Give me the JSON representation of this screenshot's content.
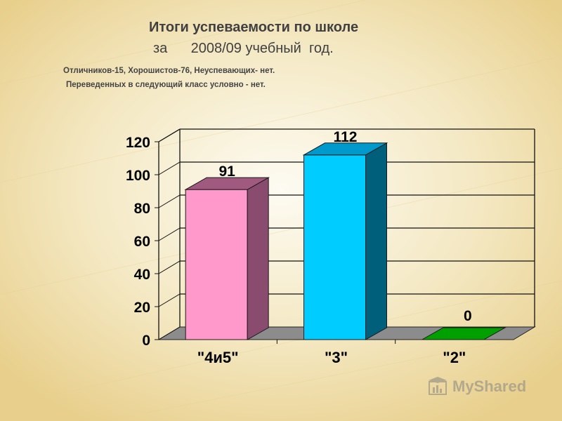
{
  "header": {
    "title_line1": "Итоги успеваемости по школе",
    "title_line2": "за      2008/09 учебный  год.",
    "note_line1": "Отличников-15,  Хорошистов-76, Неуспевающих- нет.",
    "note_line2": "Переведенных в следующий класс условно - нет."
  },
  "chart_data": {
    "type": "bar",
    "categories": [
      "\"4и5\"",
      "\"3\"",
      "\"2\""
    ],
    "values": [
      91,
      112,
      0
    ],
    "data_labels": [
      "91",
      "112",
      "0"
    ],
    "yticks": [
      0,
      20,
      40,
      60,
      80,
      100,
      120
    ],
    "ylim": [
      0,
      120
    ],
    "grid": true,
    "legend": "none",
    "bar_colors": [
      {
        "front": "#ff99cc",
        "side": "#8a4c6e",
        "top": "#a05a80"
      },
      {
        "front": "#00ccff",
        "side": "#005f7a",
        "top": "#0099cc"
      },
      {
        "front": "#007a00",
        "side": "#004d00",
        "top": "#00a000"
      }
    ]
  },
  "watermark": {
    "icon": "mortarboard-chart-icon",
    "text": "MyShared"
  }
}
